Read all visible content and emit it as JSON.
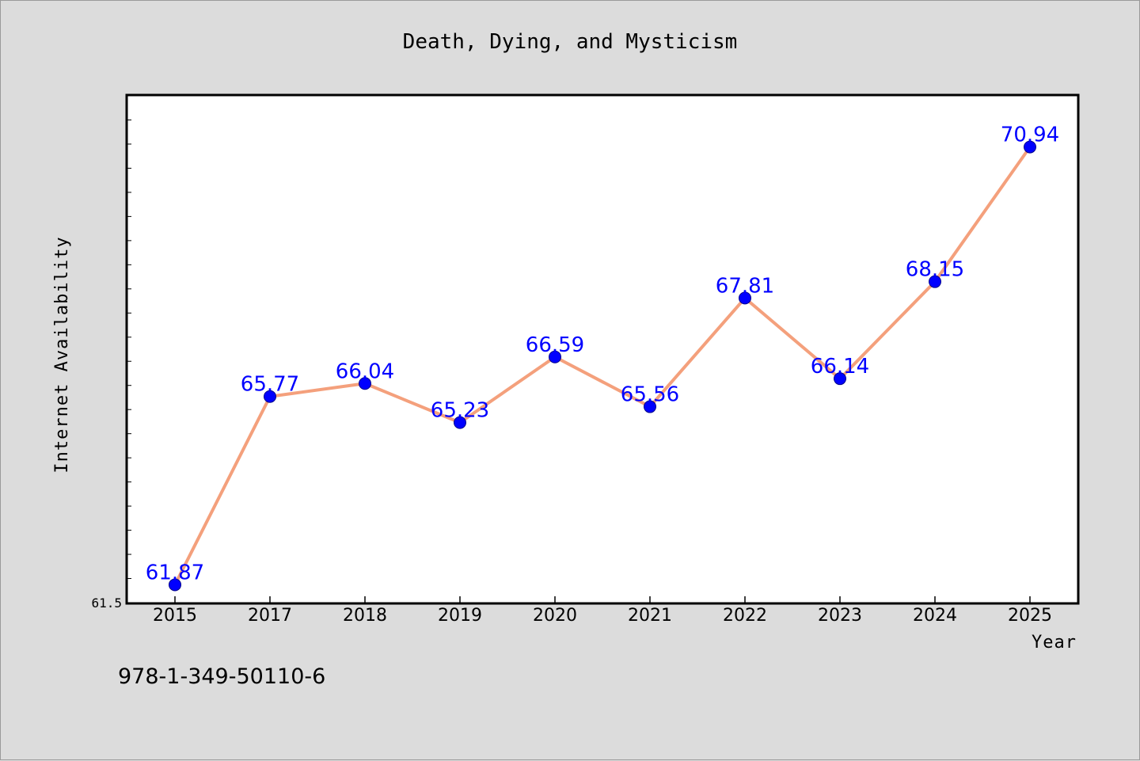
{
  "isbn": "978-1-349-50110-6",
  "chart_data": {
    "type": "line",
    "title": "Death, Dying, and Mysticism",
    "xlabel": "Year",
    "ylabel": "Internet Availability",
    "categories": [
      "2015",
      "2017",
      "2018",
      "2019",
      "2020",
      "2021",
      "2022",
      "2023",
      "2024",
      "2025"
    ],
    "series": [
      {
        "values": [
          61.87,
          65.77,
          66.04,
          65.23,
          66.59,
          65.56,
          67.81,
          66.14,
          68.15,
          70.94
        ],
        "labels": [
          "61.87",
          "65.77",
          "66.04",
          "65.23",
          "66.59",
          "65.56",
          "67.81",
          "66.14",
          "68.15",
          "70.94"
        ],
        "line_color": "#f4a07c",
        "marker_color": "#0000ff"
      }
    ],
    "ylim": [
      61.5,
      72.0
    ],
    "y_tick_labels": [
      "61.5"
    ],
    "grid": false,
    "legend": "none"
  }
}
